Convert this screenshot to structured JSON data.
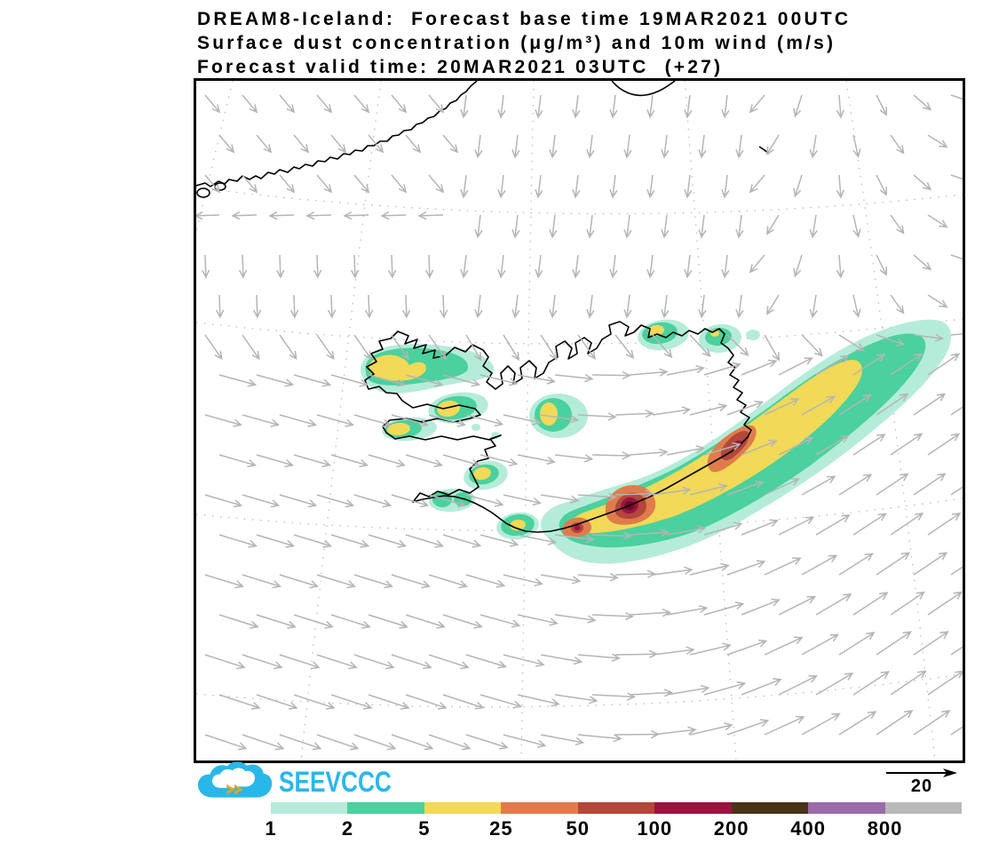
{
  "title": {
    "line1": "DREAM8-Iceland:  Forecast base time 19MAR2021 00UTC",
    "line2": "Surface dust concentration (μg/m³) and 10m wind (m/s)",
    "line3": "Forecast valid time: 20MAR2021 03UTC  (+27)"
  },
  "logo": {
    "text": "SEEVCCC",
    "color": "#29b7ea",
    "arrow_color": "#d9a62e"
  },
  "wind_reference": {
    "label": "20"
  },
  "colorbar": {
    "labels": [
      "1",
      "2",
      "5",
      "25",
      "50",
      "100",
      "200",
      "400",
      "800"
    ],
    "colors": [
      "#b5ecd9",
      "#4ad19e",
      "#f2d957",
      "#e07c4c",
      "#b2473a",
      "#9c1340",
      "#4b3318",
      "#9b6aaa",
      "#b9b9b9"
    ]
  },
  "map": {
    "wind_arrow_color": "#b5b5b5",
    "coastline_color": "#000000",
    "graticule_color": "#bdbdbd",
    "hotspot_core_color": "#6b0d26"
  }
}
